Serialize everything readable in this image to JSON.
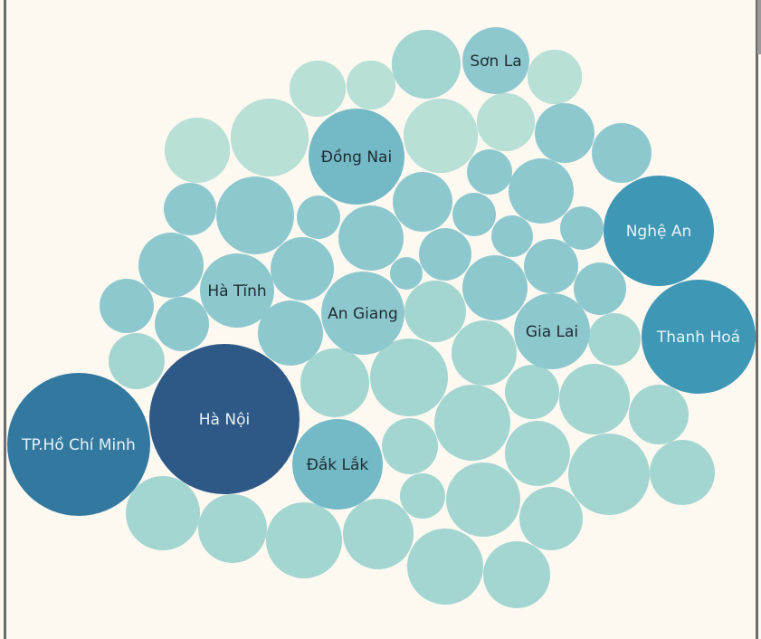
{
  "colors": {
    "background": "#fdf9f1",
    "frame": "#6b6b6b",
    "scrollbar": "#9a9a9a",
    "scale": [
      "#b8e0d6",
      "#a3d5d1",
      "#8ec8cf",
      "#74b9c6",
      "#3f97b6",
      "#33789f",
      "#2e5987"
    ]
  },
  "chart_data": {
    "type": "packed-bubble",
    "title": "",
    "legend": "none",
    "labeled": [
      {
        "label": "Hà Nội",
        "value": 100
      },
      {
        "label": "TP.Hồ Chí Minh",
        "value": 92
      },
      {
        "label": "Thanh Hoá",
        "value": 57
      },
      {
        "label": "Nghệ An",
        "value": 55
      },
      {
        "label": "Đồng Nai",
        "value": 40
      },
      {
        "label": "Đắk Lắk",
        "value": 36
      },
      {
        "label": "An Giang",
        "value": 30
      },
      {
        "label": "Gia Lai",
        "value": 24
      },
      {
        "label": "Hà Tĩnh",
        "value": 23
      },
      {
        "label": "Sơn La",
        "value": 20
      }
    ],
    "unlabeled_values": [
      28,
      27,
      27,
      27,
      26,
      26,
      25,
      23,
      23,
      22,
      22,
      22,
      21,
      21,
      21,
      21,
      20,
      20,
      20,
      20,
      19,
      19,
      19,
      19,
      19,
      18,
      18,
      18,
      18,
      18,
      17,
      17,
      17,
      17,
      16,
      16,
      16,
      16,
      16,
      15,
      15,
      15,
      14,
      14,
      13,
      13,
      13,
      13,
      12,
      12,
      12,
      11,
      11,
      10,
      9,
      8,
      8,
      7,
      7,
      6,
      5
    ]
  }
}
